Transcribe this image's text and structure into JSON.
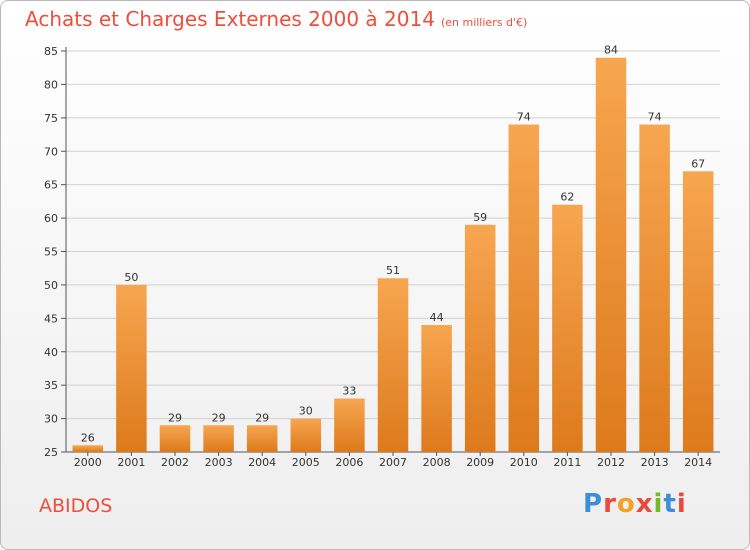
{
  "title": "Achats et Charges Externes 2000 à 2014",
  "subtitle": "(en milliers d'€)",
  "commune": "ABIDOS",
  "logo": {
    "letters": [
      "P",
      "r",
      "o",
      "x",
      "i",
      "t",
      "i"
    ],
    "colors": [
      "#3a8fd6",
      "#e64b3c",
      "#f4a12a",
      "#e64b3c",
      "#77b82a",
      "#3a8fd6",
      "#e64b3c"
    ]
  },
  "colors": {
    "bar_top": "#f7a650",
    "bar_bottom": "#dd7a1c",
    "title": "#ee4e3c",
    "grid": "#d0d0d0"
  },
  "chart_data": {
    "type": "bar",
    "title": "Achats et Charges Externes 2000 à 2014",
    "subtitle": "(en milliers d'€)",
    "categories": [
      "2000",
      "2001",
      "2002",
      "2003",
      "2004",
      "2005",
      "2006",
      "2007",
      "2008",
      "2009",
      "2010",
      "2011",
      "2012",
      "2013",
      "2014"
    ],
    "values": [
      26,
      50,
      29,
      29,
      29,
      30,
      33,
      51,
      44,
      59,
      74,
      62,
      84,
      74,
      67
    ],
    "ylim": [
      25,
      85
    ],
    "yticks": [
      25,
      30,
      35,
      40,
      45,
      50,
      55,
      60,
      65,
      70,
      75,
      80,
      85
    ],
    "grid": true,
    "xlabel": "",
    "ylabel": ""
  }
}
